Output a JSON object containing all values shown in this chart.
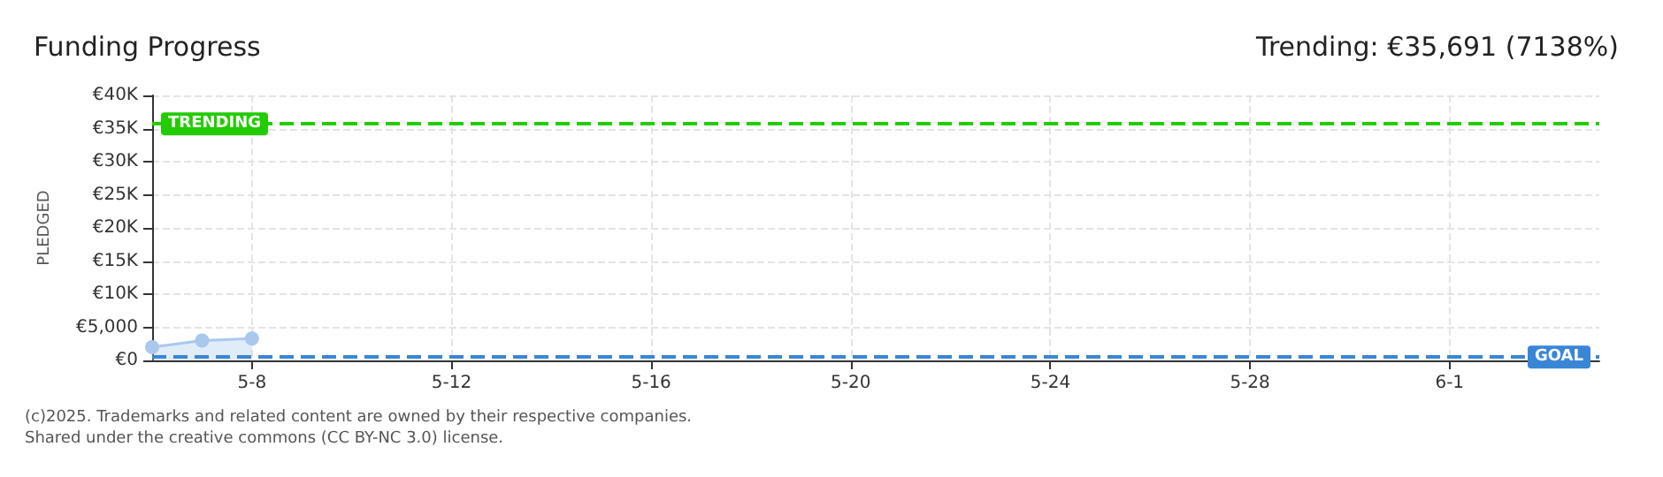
{
  "chart_data": {
    "type": "area",
    "title": "Funding Progress",
    "subtitle": "Trending: €35,691 (7138%)",
    "ylabel": "PLEDGED",
    "annotations": [
      "(c)2025. Trademarks and related content are owned by their respective companies.",
      "Shared under the creative commons (CC BY-NC 3.0) license."
    ],
    "x": [
      "--05-06",
      "--05-07",
      "--05-08"
    ],
    "series": [
      {
        "color": "#a9c8ee",
        "values": [
          2000,
          3000,
          3300
        ]
      }
    ],
    "xlim": [
      "--05-06",
      "--06-04"
    ],
    "xticks": [
      {
        "value": "--05-08",
        "label": "5-8"
      },
      {
        "value": "--05-12",
        "label": "5-12"
      },
      {
        "value": "--05-16",
        "label": "5-16"
      },
      {
        "value": "--05-20",
        "label": "5-20"
      },
      {
        "value": "--05-24",
        "label": "5-24"
      },
      {
        "value": "--05-28",
        "label": "5-28"
      },
      {
        "value": "--06-01",
        "label": "6-1"
      }
    ],
    "ylim": [
      0,
      40000
    ],
    "yticks": [
      {
        "value": 0,
        "label": "€0"
      },
      {
        "value": 5000,
        "label": "€5,000"
      },
      {
        "value": 10000,
        "label": "€10K"
      },
      {
        "value": 15000,
        "label": "€15K"
      },
      {
        "value": 20000,
        "label": "€20K"
      },
      {
        "value": 25000,
        "label": "€25K"
      },
      {
        "value": 30000,
        "label": "€30K"
      },
      {
        "value": 35000,
        "label": "€35K"
      },
      {
        "value": 40000,
        "label": "€40K"
      }
    ],
    "ref_lines": [
      {
        "axis": "y",
        "value": 35691,
        "label": "TRENDING",
        "color": "#22cc00",
        "line_style": "dashed"
      },
      {
        "axis": "y",
        "value": 500,
        "label": "GOAL",
        "color": "#3a86d6",
        "line_style": "dashed"
      }
    ],
    "grid": true,
    "marker": "circle"
  }
}
